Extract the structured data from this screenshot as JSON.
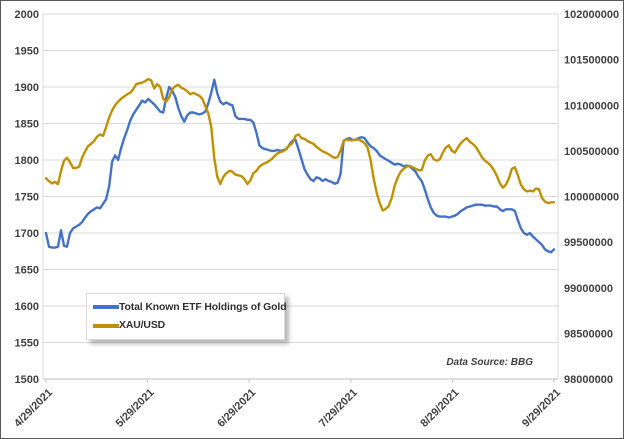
{
  "figure": {
    "source_note": "Data Source: BBG"
  },
  "chart_data": {
    "type": "line",
    "title": "",
    "grid": true,
    "legend_position": "bottom-left",
    "x_axis": {
      "tick_labels": [
        "4/29/2021",
        "5/29/2021",
        "6/29/2021",
        "7/29/2021",
        "8/29/2021",
        "9/29/2021"
      ]
    },
    "left_axis": {
      "ylim": [
        1500,
        2000
      ],
      "ticks": [
        2000,
        1950,
        1900,
        1850,
        1800,
        1750,
        1700,
        1650,
        1600,
        1550,
        1500
      ]
    },
    "right_axis": {
      "ylim": [
        98000000,
        102000000
      ],
      "ticks": [
        102000000,
        101500000,
        101000000,
        100500000,
        100000000,
        99500000,
        99000000,
        98500000,
        98000000
      ]
    },
    "colors": {
      "etf_line": "#4472C4",
      "xau_line": "#BF9000",
      "gridline": "#D9D9D9",
      "axis_line": "#BFBFBF",
      "text": "#404040"
    },
    "series": [
      {
        "name": "Total Known ETF Holdings of Gold",
        "axis": "right",
        "color": "#4472C4",
        "values": [
          99600000,
          99450000,
          99440000,
          99440000,
          99450000,
          99630000,
          99460000,
          99450000,
          99600000,
          99650000,
          99670000,
          99690000,
          99720000,
          99770000,
          99810000,
          99840000,
          99860000,
          99880000,
          99870000,
          99920000,
          99970000,
          100110000,
          100380000,
          100450000,
          100400000,
          100530000,
          100640000,
          100730000,
          100830000,
          100900000,
          100950000,
          101000000,
          101050000,
          101030000,
          101070000,
          101040000,
          101010000,
          100970000,
          100930000,
          100920000,
          101080000,
          101200000,
          101160000,
          101090000,
          100970000,
          100880000,
          100820000,
          100890000,
          100920000,
          100920000,
          100910000,
          100900000,
          100910000,
          100930000,
          101020000,
          101140000,
          101280000,
          101130000,
          101040000,
          101010000,
          101030000,
          101010000,
          101000000,
          100880000,
          100850000,
          100850000,
          100850000,
          100840000,
          100840000,
          100810000,
          100700000,
          100560000,
          100530000,
          100520000,
          100510000,
          100500000,
          100500000,
          100510000,
          100500000,
          100510000,
          100520000,
          100570000,
          100610000,
          100620000,
          100520000,
          100410000,
          100300000,
          100240000,
          100190000,
          100170000,
          100210000,
          100200000,
          100170000,
          100190000,
          100170000,
          100160000,
          100140000,
          100150000,
          100250000,
          100610000,
          100630000,
          100640000,
          100620000,
          100620000,
          100640000,
          100650000,
          100640000,
          100590000,
          100550000,
          100530000,
          100500000,
          100450000,
          100430000,
          100410000,
          100390000,
          100370000,
          100350000,
          100360000,
          100350000,
          100330000,
          100340000,
          100330000,
          100300000,
          100270000,
          100210000,
          100170000,
          100080000,
          99970000,
          99880000,
          99820000,
          99790000,
          99780000,
          99780000,
          99780000,
          99770000,
          99780000,
          99790000,
          99810000,
          99840000,
          99860000,
          99880000,
          99890000,
          99900000,
          99910000,
          99910000,
          99910000,
          99900000,
          99900000,
          99900000,
          99890000,
          99890000,
          99860000,
          99840000,
          99860000,
          99860000,
          99860000,
          99840000,
          99740000,
          99650000,
          99600000,
          99580000,
          99600000,
          99560000,
          99530000,
          99500000,
          99470000,
          99420000,
          99400000,
          99390000,
          99420000
        ]
      },
      {
        "name": "XAU/USD",
        "axis": "left",
        "color": "#BF9000",
        "values": [
          1775,
          1771,
          1768,
          1770,
          1767,
          1785,
          1799,
          1803,
          1797,
          1789,
          1789,
          1791,
          1803,
          1812,
          1819,
          1822,
          1826,
          1832,
          1835,
          1833,
          1845,
          1858,
          1868,
          1875,
          1880,
          1884,
          1887,
          1890,
          1892,
          1897,
          1904,
          1905,
          1906,
          1908,
          1911,
          1909,
          1898,
          1904,
          1900,
          1884,
          1880,
          1886,
          1897,
          1901,
          1903,
          1899,
          1897,
          1894,
          1890,
          1892,
          1890,
          1888,
          1884,
          1874,
          1864,
          1845,
          1802,
          1777,
          1767,
          1777,
          1782,
          1785,
          1784,
          1780,
          1779,
          1778,
          1774,
          1767,
          1772,
          1782,
          1785,
          1791,
          1794,
          1796,
          1798,
          1801,
          1805,
          1809,
          1811,
          1812,
          1816,
          1820,
          1823,
          1833,
          1835,
          1830,
          1829,
          1826,
          1824,
          1822,
          1818,
          1815,
          1812,
          1810,
          1808,
          1805,
          1803,
          1804,
          1813,
          1826,
          1828,
          1827,
          1827,
          1828,
          1828,
          1826,
          1823,
          1817,
          1800,
          1775,
          1755,
          1741,
          1731,
          1733,
          1737,
          1748,
          1765,
          1776,
          1784,
          1788,
          1791,
          1792,
          1790,
          1788,
          1786,
          1786,
          1799,
          1806,
          1808,
          1801,
          1799,
          1801,
          1810,
          1817,
          1820,
          1813,
          1810,
          1817,
          1823,
          1827,
          1830,
          1825,
          1822,
          1818,
          1811,
          1804,
          1799,
          1796,
          1792,
          1786,
          1778,
          1768,
          1762,
          1766,
          1775,
          1788,
          1790,
          1779,
          1766,
          1760,
          1757,
          1758,
          1757,
          1761,
          1760,
          1748,
          1743,
          1741,
          1742,
          1742
        ]
      }
    ]
  }
}
